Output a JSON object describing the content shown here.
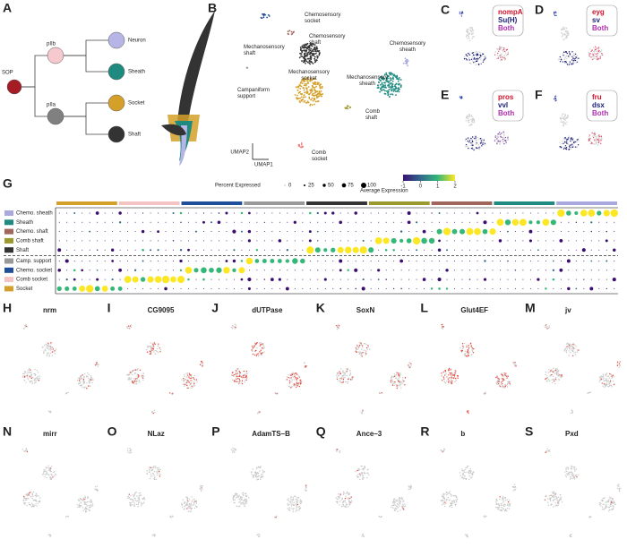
{
  "panel_a": {
    "letter": "A",
    "nodes": [
      "SOP",
      "pIIb",
      "pIIa",
      "Neuron",
      "Sheath",
      "Socket",
      "Shaft"
    ],
    "colors": [
      "#a51c24",
      "#f6c9cf",
      "#808080",
      "#b7b5e6",
      "#1f8a80",
      "#d4a029",
      "#333333"
    ]
  },
  "panel_b": {
    "letter": "B",
    "clusters": [
      "Chemosensory socket",
      "Chemosensory shaft",
      "Mechanosensory shaft",
      "Chemosensory sheath",
      "Mechanosensory sheath",
      "Mechanosensory socket",
      "Campaniform support",
      "Comb shaft",
      "Comb socket"
    ],
    "colors": [
      "#1f4e9a",
      "#a0665c",
      "#333333",
      "#a9a9e0",
      "#1f8a80",
      "#d4a029",
      "#999999",
      "#9a9a2e",
      "#f08080"
    ],
    "x_axis": "UMAP1",
    "y_axis": "UMAP2"
  },
  "feature_panels": [
    {
      "letter": "C",
      "genes": [
        "nompA",
        "Su(H)",
        "Both"
      ]
    },
    {
      "letter": "D",
      "genes": [
        "eyg",
        "sv",
        "Both"
      ]
    },
    {
      "letter": "E",
      "genes": [
        "pros",
        "vvl",
        "Both"
      ]
    },
    {
      "letter": "F",
      "genes": [
        "fru",
        "dsx",
        "Both"
      ]
    }
  ],
  "panel_g": {
    "letter": "G",
    "rows": [
      "Chemo. sheath",
      "Sheath",
      "Chemo. shaft",
      "Comb shaft",
      "Shaft",
      "Camp. support",
      "Chemo. socket",
      "Comb socket",
      "Socket"
    ],
    "row_colors": [
      "#a9a9e0",
      "#1f8a80",
      "#a0665c",
      "#9a9a2e",
      "#333333",
      "#999999",
      "#1f4e9a",
      "#f4c4c4",
      "#d4a029"
    ],
    "size_legend_title": "Percent Expressed",
    "size_ticks": [
      0,
      25,
      50,
      75,
      100
    ],
    "color_legend_title": "Average Expression",
    "color_ticks": [
      -1,
      0,
      1,
      2
    ]
  },
  "gene_panels": [
    {
      "letter": "H",
      "gene": "nrm"
    },
    {
      "letter": "I",
      "gene": "CG9095"
    },
    {
      "letter": "J",
      "gene": "dUTPase"
    },
    {
      "letter": "K",
      "gene": "SoxN"
    },
    {
      "letter": "L",
      "gene": "Glut4EF"
    },
    {
      "letter": "M",
      "gene": "jv"
    },
    {
      "letter": "N",
      "gene": "mirr"
    },
    {
      "letter": "O",
      "gene": "NLaz"
    },
    {
      "letter": "P",
      "gene": "AdamTS–B"
    },
    {
      "letter": "Q",
      "gene": "Ance–3"
    },
    {
      "letter": "R",
      "gene": "b"
    },
    {
      "letter": "S",
      "gene": "Pxd"
    }
  ]
}
